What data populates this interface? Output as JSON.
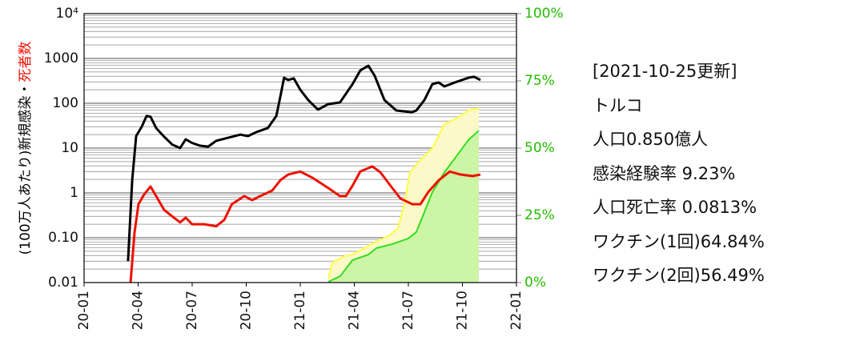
{
  "chart_data": {
    "type": "line",
    "y_label": "(100万人あたり)新規感染・",
    "y_label_red": "死者数",
    "log_y": true,
    "grid": true,
    "xlim": [
      0,
      24
    ],
    "xticks": [
      {
        "value": 0,
        "label": "20-01"
      },
      {
        "value": 3,
        "label": "20-04"
      },
      {
        "value": 6,
        "label": "20-07"
      },
      {
        "value": 9,
        "label": "20-10"
      },
      {
        "value": 12,
        "label": "21-01"
      },
      {
        "value": 15,
        "label": "21-04"
      },
      {
        "value": 18,
        "label": "21-07"
      },
      {
        "value": 21,
        "label": "21-10"
      },
      {
        "value": 24,
        "label": "22-01"
      }
    ],
    "ylim": [
      0.01,
      10000
    ],
    "yticks": [
      0.01,
      {
        "value": 0.1,
        "label": "0.10"
      },
      1,
      10,
      100,
      1000,
      {
        "value": 10000,
        "label": "10⁴"
      }
    ],
    "y2lim": [
      0,
      100
    ],
    "y2ticks": [
      {
        "value": 0,
        "label": "0%"
      },
      {
        "value": 25,
        "label": "25%"
      },
      {
        "value": 50,
        "label": "50%"
      },
      {
        "value": 75,
        "label": "75%"
      },
      {
        "value": 100,
        "label": "100%"
      }
    ],
    "y2_color": "#22bb00",
    "series": [
      {
        "color": "#ffff44",
        "fill": "#fbf9c8",
        "axis": "y2",
        "area": true,
        "x": [
          13.56,
          13.78,
          14.44,
          14.89,
          15.56,
          16.22,
          16.89,
          17.42,
          17.78,
          18.09,
          18.67,
          19.33,
          20.0,
          20.67,
          21.33,
          21.91
        ],
        "values": [
          1.5,
          7.4,
          9.8,
          10.4,
          12.8,
          15.2,
          17.3,
          20.2,
          29,
          41,
          45.5,
          50,
          59,
          61,
          64,
          64.84
        ]
      },
      {
        "color": "#33dd22",
        "fill": "#ccf5a6",
        "axis": "y2",
        "area": true,
        "x": [
          13.56,
          14.22,
          14.89,
          15.78,
          16.22,
          17.11,
          18.0,
          18.44,
          18.89,
          19.33,
          20.0,
          20.67,
          21.33,
          21.91
        ],
        "values": [
          0.3,
          2.4,
          8.3,
          10.4,
          12.8,
          14.3,
          16.4,
          18.8,
          26.2,
          33.6,
          41,
          47,
          53,
          56.49
        ]
      },
      {
        "color": "#000000",
        "x": [
          2.44,
          2.67,
          2.89,
          3.2,
          3.47,
          3.69,
          4.0,
          4.44,
          4.89,
          5.33,
          5.64,
          6.0,
          6.44,
          6.89,
          7.33,
          8.0,
          8.67,
          9.1,
          9.56,
          10.2,
          10.67,
          10.9,
          11.1,
          11.33,
          11.64,
          12.0,
          12.44,
          12.98,
          13.56,
          14.2,
          14.9,
          15.33,
          15.78,
          16.13,
          16.67,
          17.33,
          18.2,
          18.44,
          18.89,
          19.33,
          19.69,
          20.0,
          20.67,
          21.33,
          21.64,
          22.0
        ],
        "values": [
          0.03,
          1.9,
          18.5,
          30,
          52,
          50,
          28,
          18,
          12,
          10,
          15.7,
          13,
          11.3,
          10.8,
          14.5,
          17,
          20,
          18.5,
          22.7,
          28,
          52,
          145,
          370,
          330,
          360,
          200,
          118,
          72,
          96,
          104,
          267,
          540,
          690,
          410,
          118,
          69,
          63,
          69,
          118,
          267,
          290,
          237,
          300,
          370,
          390,
          330
        ]
      },
      {
        "color": "#ee1100",
        "x": [
          2.58,
          2.8,
          3.02,
          3.33,
          3.69,
          4.0,
          4.44,
          4.89,
          5.33,
          5.64,
          6.0,
          6.67,
          7.33,
          7.78,
          8.2,
          8.89,
          9.33,
          9.78,
          10.44,
          10.9,
          11.33,
          12.0,
          12.67,
          13.56,
          14.2,
          14.53,
          14.9,
          15.33,
          16.0,
          16.44,
          17.11,
          17.56,
          18.22,
          18.67,
          19.1,
          19.69,
          20.3,
          20.89,
          21.56,
          22.0
        ],
        "values": [
          0.01,
          0.13,
          0.56,
          0.92,
          1.39,
          0.85,
          0.42,
          0.3,
          0.22,
          0.28,
          0.2,
          0.2,
          0.18,
          0.25,
          0.56,
          0.85,
          0.69,
          0.85,
          1.13,
          1.93,
          2.57,
          3.0,
          2.18,
          1.28,
          0.85,
          0.85,
          1.45,
          3.0,
          3.9,
          2.9,
          1.28,
          0.75,
          0.56,
          0.56,
          1.04,
          1.93,
          3.0,
          2.57,
          2.37,
          2.57
        ]
      }
    ]
  },
  "info": {
    "updated": "[2021-10-25更新]",
    "country": "トルコ",
    "population": "人口0.850億人",
    "infection_rate": "感染経験率 9.23%",
    "death_rate": "人口死亡率 0.0813%",
    "vaccine1": "ワクチン(1回)64.84%",
    "vaccine2": "ワクチン(2回)56.49%"
  }
}
